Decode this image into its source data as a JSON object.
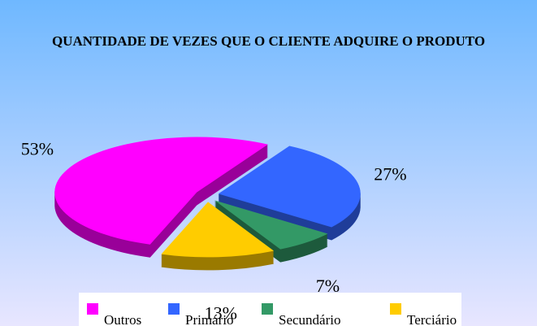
{
  "chart_data": {
    "type": "pie",
    "title": "QUANTIDADE DE VEZES QUE O CLIENTE ADQUIRE O PRODUTO",
    "categories": [
      "Outros",
      "Primário",
      "Secundário",
      "Terciário"
    ],
    "values": [
      53,
      27,
      7,
      13
    ],
    "value_labels": [
      "53%",
      "27%",
      "7%",
      "13%"
    ],
    "colors": [
      "#ff00ff",
      "#3366ff",
      "#339966",
      "#ffcc00"
    ],
    "side_colors": [
      "#990099",
      "#1f3d99",
      "#1d5a3c",
      "#9a7a00"
    ],
    "legend": "bottom"
  }
}
